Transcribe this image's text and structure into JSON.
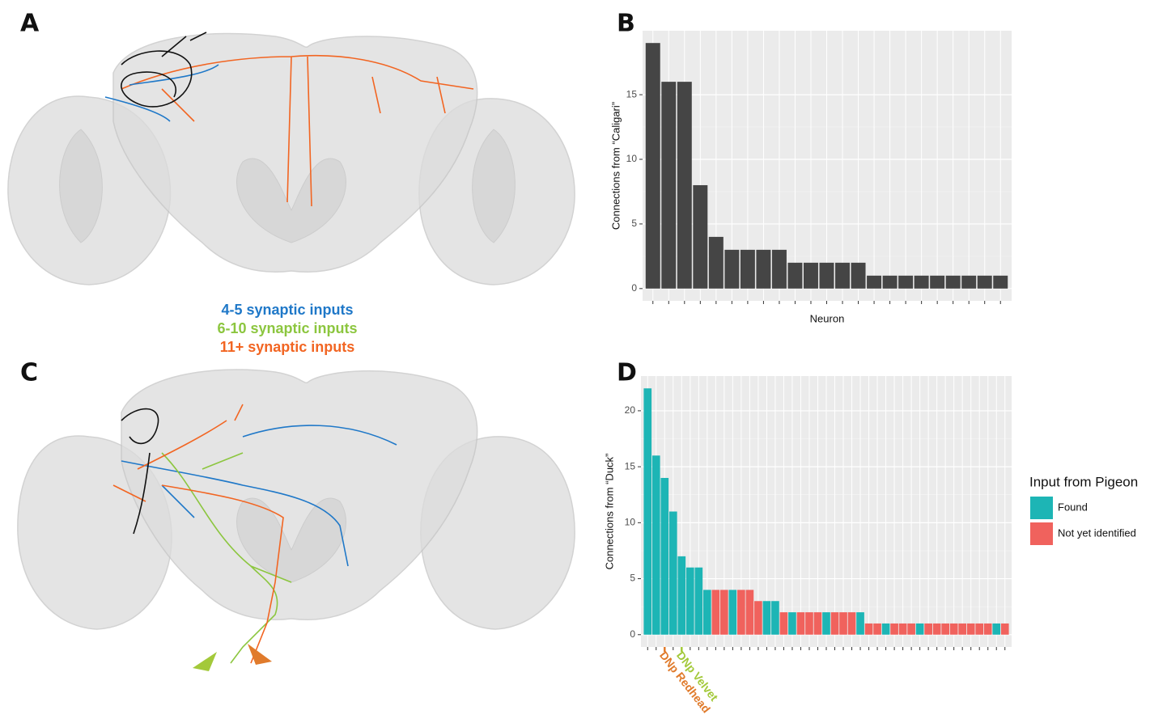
{
  "panel_labels": [
    "A",
    "B",
    "C",
    "D"
  ],
  "brain_legend": [
    {
      "text": "4-5 synaptic inputs",
      "color": "#1f78c8"
    },
    {
      "text": "6-10 synaptic inputs",
      "color": "#8cc63f"
    },
    {
      "text": "11+ synaptic inputs",
      "color": "#f26522"
    }
  ],
  "chart_data": [
    {
      "type": "bar",
      "ylabel": "Connections from “Caligari”",
      "xlabel": "Neuron",
      "categories": [
        null,
        null,
        null,
        null,
        null,
        null,
        null,
        null,
        null,
        null,
        null,
        null,
        null,
        null,
        null,
        null,
        null,
        null,
        null,
        null,
        null,
        null,
        null
      ],
      "values": [
        19,
        16,
        16,
        8,
        4,
        3,
        3,
        3,
        3,
        2,
        2,
        2,
        2,
        2,
        1,
        1,
        1,
        1,
        1,
        1,
        1,
        1,
        1
      ],
      "color": "#454545",
      "ylim": [
        -0.95,
        19.95
      ],
      "yticks": [
        0,
        5,
        10,
        15
      ],
      "grid": true
    },
    {
      "type": "bar",
      "ylabel": "Connections from “Duck”",
      "categories": [
        null,
        null,
        null,
        null,
        null,
        null,
        null,
        null,
        null,
        null,
        null,
        null,
        null,
        null,
        null,
        null,
        null,
        null,
        null,
        null,
        null,
        null,
        null,
        null,
        null,
        null,
        null,
        null,
        null,
        null,
        null,
        null,
        null,
        null,
        null,
        null,
        null,
        null,
        null,
        null,
        null,
        null,
        null
      ],
      "series": [
        {
          "name": "Found",
          "color": "#1db5b5",
          "values": [
            22,
            16,
            14,
            11,
            7,
            6,
            6,
            4,
            null,
            null,
            4,
            null,
            null,
            null,
            3,
            3,
            null,
            2,
            null,
            null,
            null,
            2,
            null,
            null,
            null,
            2,
            null,
            null,
            1,
            null,
            null,
            null,
            1,
            null,
            null,
            null,
            null,
            null,
            null,
            null,
            null,
            1,
            null
          ]
        },
        {
          "name": "Not yet identified",
          "color": "#f0625d",
          "values": [
            null,
            null,
            null,
            null,
            null,
            null,
            null,
            null,
            4,
            4,
            null,
            4,
            4,
            3,
            null,
            null,
            2,
            null,
            2,
            2,
            2,
            null,
            2,
            2,
            2,
            null,
            1,
            1,
            null,
            1,
            1,
            1,
            null,
            1,
            1,
            1,
            1,
            1,
            1,
            1,
            1,
            null,
            1
          ]
        }
      ],
      "legend_title": "Input from Pigeon",
      "annotations": [
        {
          "text": "DNp Redhead",
          "color": "#e07b2c"
        },
        {
          "text": "DNp Velvet",
          "color": "#a3c93a"
        }
      ],
      "ylim": [
        -1.1,
        23.1
      ],
      "yticks": [
        0,
        5,
        10,
        15,
        20
      ],
      "grid": true
    }
  ]
}
